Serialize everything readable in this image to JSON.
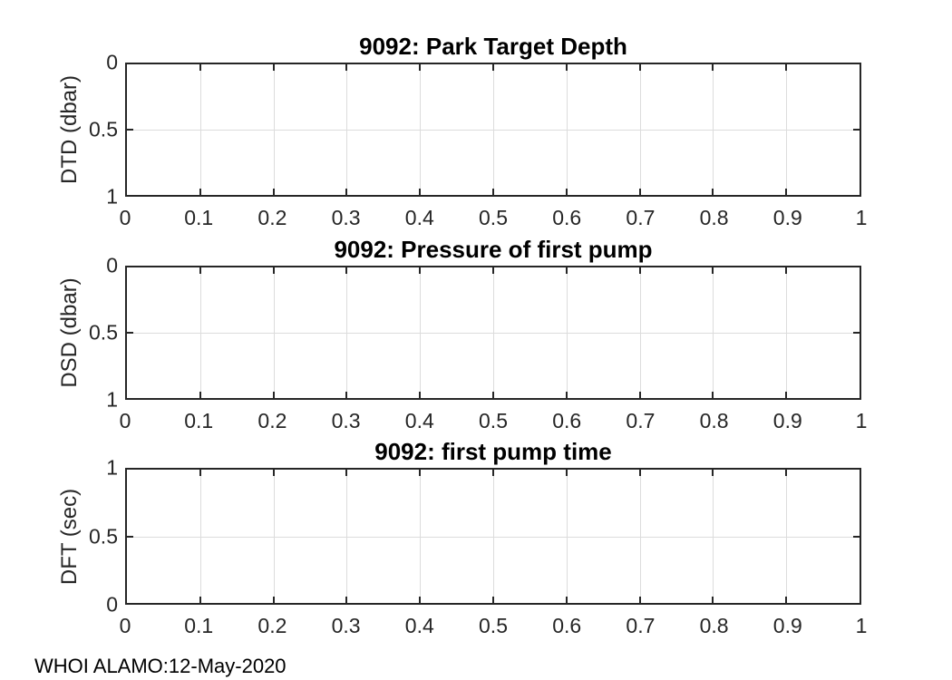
{
  "figure": {
    "footer": "WHOI ALAMO:12-May-2020",
    "background_color": "#ffffff",
    "axis_color": "#262626",
    "grid_color": "#dcdcdc",
    "title_color": "#000000"
  },
  "chart_data": [
    {
      "type": "line",
      "title": "9092: Park Target Depth",
      "xlabel": "",
      "ylabel": "DTD (dbar)",
      "xlim": [
        0,
        1
      ],
      "ylim": [
        0,
        1
      ],
      "y_direction": "reverse",
      "grid": true,
      "xticks": [
        "0",
        "0.1",
        "0.2",
        "0.3",
        "0.4",
        "0.5",
        "0.6",
        "0.7",
        "0.8",
        "0.9",
        "1"
      ],
      "yticks": [
        "0",
        "0.5",
        "1"
      ],
      "series": []
    },
    {
      "type": "line",
      "title": "9092: Pressure of first pump",
      "xlabel": "",
      "ylabel": "DSD (dbar)",
      "xlim": [
        0,
        1
      ],
      "ylim": [
        0,
        1
      ],
      "y_direction": "reverse",
      "grid": true,
      "xticks": [
        "0",
        "0.1",
        "0.2",
        "0.3",
        "0.4",
        "0.5",
        "0.6",
        "0.7",
        "0.8",
        "0.9",
        "1"
      ],
      "yticks": [
        "0",
        "0.5",
        "1"
      ],
      "series": []
    },
    {
      "type": "line",
      "title": "9092: first pump time",
      "xlabel": "",
      "ylabel": "DFT (sec)",
      "xlim": [
        0,
        1
      ],
      "ylim": [
        0,
        1
      ],
      "y_direction": "normal",
      "grid": true,
      "xticks": [
        "0",
        "0.1",
        "0.2",
        "0.3",
        "0.4",
        "0.5",
        "0.6",
        "0.7",
        "0.8",
        "0.9",
        "1"
      ],
      "yticks": [
        "0",
        "0.5",
        "1"
      ],
      "series": []
    }
  ]
}
